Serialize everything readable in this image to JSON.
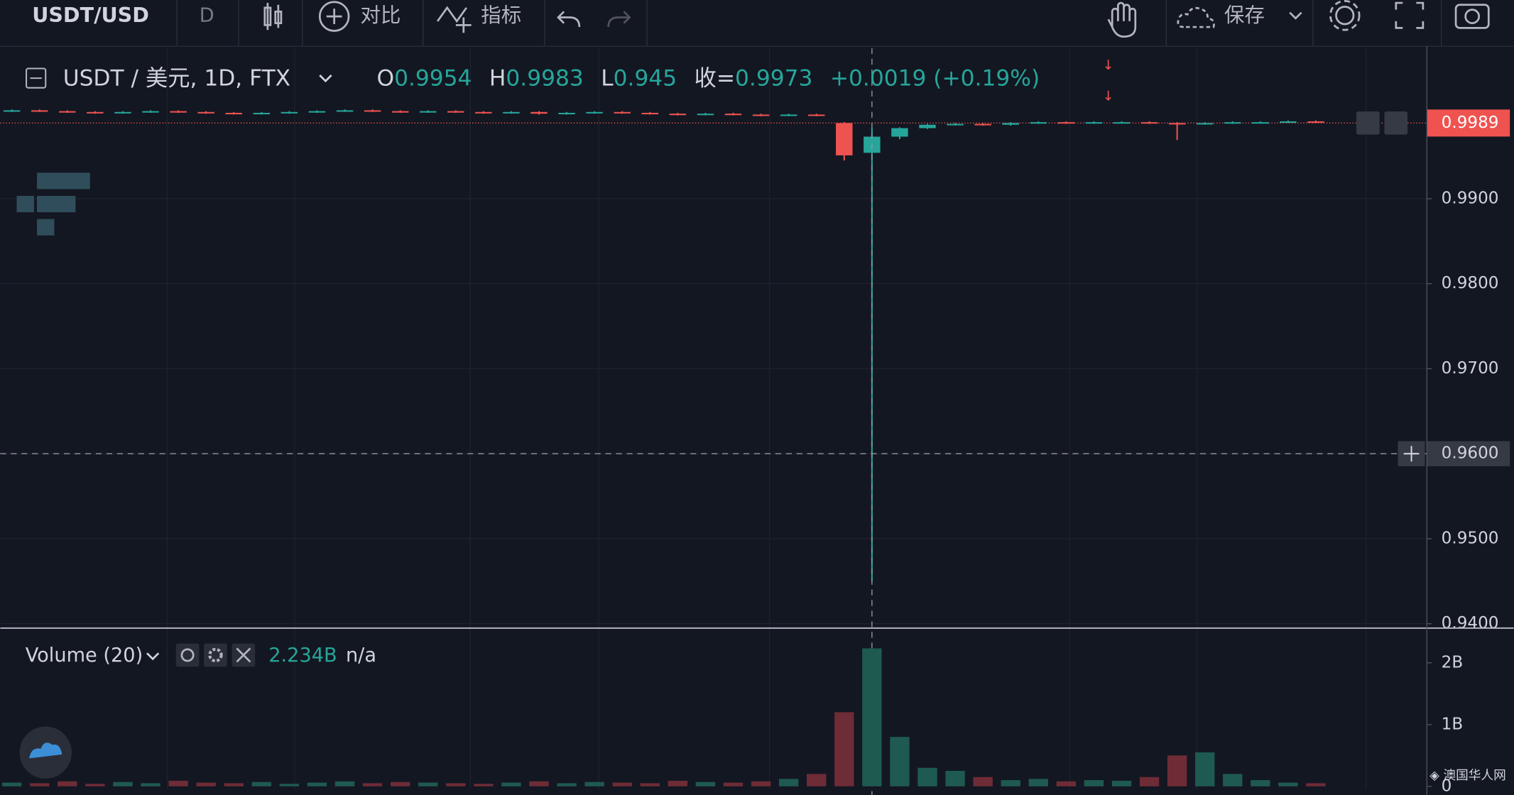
{
  "toolbar": {
    "symbol": "USDT/USD",
    "interval": "D",
    "compare": "对比",
    "indicators": "指标",
    "save": "保存"
  },
  "chart_data": [
    {
      "type": "candlestick",
      "title": "USDT / 美元, 1D, FTX",
      "ohlc": [
        {
          "label": "O",
          "value": 0.9954
        },
        {
          "label": "H",
          "value": 0.9983
        },
        {
          "label": "L",
          "value": 0.945
        },
        {
          "label": "收=",
          "value": 0.9973
        }
      ],
      "change": "+0.0019 (+0.19%)",
      "up_color": "#26a69a",
      "down_color": "#ef5350",
      "open": [
        1.0003,
        1.0004,
        1.0003,
        1.0002,
        1.0001,
        1.0002,
        1.0003,
        1.0002,
        1.0001,
        1.0,
        1.0001,
        1.0002,
        1.0003,
        1.0004,
        1.0003,
        1.0002,
        1.0003,
        1.0002,
        1.0001,
        1.0002,
        1.0,
        1.0001,
        1.0002,
        1.0001,
        1.0,
        0.9999,
        1.0,
        0.9999,
        0.9998,
        0.9999,
        0.9989,
        0.9954,
        0.9973,
        0.9983,
        0.9987,
        0.9988,
        0.9987,
        0.9989,
        0.999,
        0.9989,
        0.999,
        0.999,
        0.9989,
        0.9988,
        0.9989,
        0.999,
        0.999,
        0.9991
      ],
      "high": [
        1.0005,
        1.0005,
        1.0004,
        1.0003,
        1.0003,
        1.0004,
        1.0004,
        1.0003,
        1.0002,
        1.0002,
        1.0003,
        1.0004,
        1.0005,
        1.0005,
        1.0004,
        1.0004,
        1.0004,
        1.0003,
        1.0003,
        1.0003,
        1.0002,
        1.0003,
        1.0003,
        1.0002,
        1.0001,
        1.0001,
        1.0001,
        1.0,
        1.0,
        1.0,
        0.999,
        0.9983,
        0.9984,
        0.9988,
        0.9989,
        0.9989,
        0.999,
        0.9991,
        0.9991,
        0.9991,
        0.9991,
        0.9991,
        0.999,
        0.999,
        0.9991,
        0.9991,
        0.9992,
        0.9992
      ],
      "low": [
        1.0002,
        1.0002,
        1.0001,
        1.0,
        1.0,
        1.0001,
        1.0001,
        1.0,
        0.9999,
        0.9999,
        1.0,
        1.0001,
        1.0002,
        1.0002,
        1.0001,
        1.0001,
        1.0001,
        1.0,
        1.0,
        0.9999,
        0.9999,
        1.0,
        1.0,
        0.9999,
        0.9998,
        0.9998,
        0.9998,
        0.9997,
        0.9997,
        0.9997,
        0.9945,
        0.945,
        0.997,
        0.9982,
        0.9986,
        0.9986,
        0.9986,
        0.9988,
        0.9988,
        0.9988,
        0.9989,
        0.9988,
        0.9969,
        0.9987,
        0.9988,
        0.9989,
        0.9989,
        0.9989
      ],
      "close": [
        1.0004,
        1.0003,
        1.0002,
        1.0001,
        1.0002,
        1.0003,
        1.0002,
        1.0001,
        1.0,
        1.0001,
        1.0002,
        1.0003,
        1.0004,
        1.0003,
        1.0002,
        1.0003,
        1.0002,
        1.0001,
        1.0002,
        1.0,
        1.0001,
        1.0002,
        1.0001,
        1.0,
        0.9999,
        1.0,
        0.9999,
        0.9998,
        0.9999,
        0.9998,
        0.9951,
        0.9973,
        0.9983,
        0.9987,
        0.9988,
        0.9987,
        0.9989,
        0.999,
        0.9989,
        0.999,
        0.999,
        0.9989,
        0.9988,
        0.9989,
        0.999,
        0.999,
        0.9991,
        0.999
      ],
      "ylim": [
        0.9396,
        1.0077
      ],
      "yticks": [
        {
          "value": 0.94,
          "label": "0.9400"
        },
        {
          "value": 0.95,
          "label": "0.9500"
        },
        {
          "value": 0.96,
          "label": "0.9600"
        },
        {
          "value": 0.97,
          "label": "0.9700"
        },
        {
          "value": 0.98,
          "label": "0.9800"
        },
        {
          "value": 0.99,
          "label": "0.9900"
        }
      ],
      "last_price": 0.9989,
      "crosshair": {
        "value": 0.96,
        "label": "0.9600"
      },
      "grid": true
    },
    {
      "type": "volume",
      "title": "Volume (20)",
      "legend_value": "2.234B",
      "legend_extra": "n/a",
      "up_color": "#1f5a50",
      "down_color": "#6e2c36",
      "values": [
        0.06,
        0.05,
        0.08,
        0.04,
        0.07,
        0.05,
        0.09,
        0.06,
        0.05,
        0.07,
        0.04,
        0.06,
        0.08,
        0.05,
        0.07,
        0.06,
        0.05,
        0.04,
        0.06,
        0.08,
        0.05,
        0.07,
        0.06,
        0.05,
        0.09,
        0.07,
        0.06,
        0.08,
        0.12,
        0.2,
        1.2,
        2.234,
        0.8,
        0.3,
        0.25,
        0.15,
        0.1,
        0.12,
        0.08,
        0.1,
        0.09,
        0.15,
        0.5,
        0.55,
        0.2,
        0.1,
        0.06,
        0.05
      ],
      "ylim": [
        0,
        2.5
      ],
      "yticks": [
        0,
        {
          "value": 1,
          "label": "1B"
        },
        {
          "value": 2,
          "label": "2B"
        }
      ]
    }
  ]
}
